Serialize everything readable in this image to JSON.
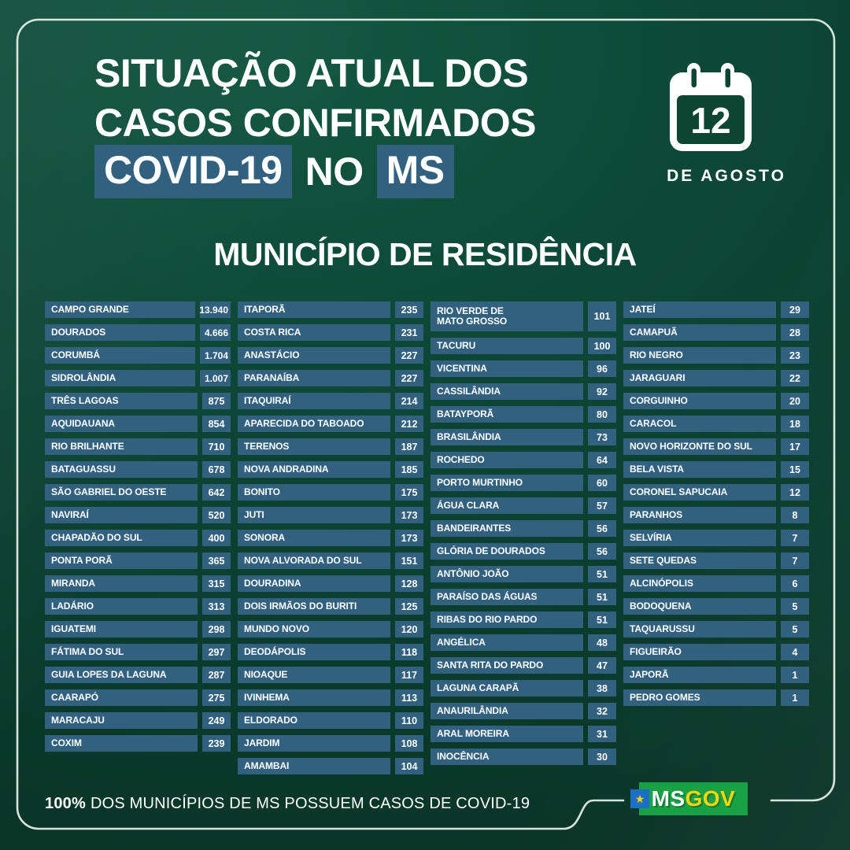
{
  "colors": {
    "accent": "#31617F",
    "bg": "#0C4434",
    "frame": "#E9F2EC",
    "logo_green": "#18A145",
    "logo_yellow": "#FFD500",
    "logo_blue": "#1D6FC2"
  },
  "header": {
    "title_line1": "SITUAÇÃO ATUAL DOS",
    "title_line2": "CASOS CONFIRMADOS",
    "covid_label": "COVID-19",
    "connector": "NO",
    "ms_label": "MS",
    "date_day": "12",
    "date_month": "DE AGOSTO"
  },
  "section_title": "MUNICÍPIO DE RESIDÊNCIA",
  "display": {
    "columns": [
      {
        "rows": [
          {
            "name": "CAMPO GRANDE",
            "value": "13.940"
          },
          {
            "name": "DOURADOS",
            "value": "4.666"
          },
          {
            "name": "CORUMBÁ",
            "value": "1.704"
          },
          {
            "name": "SIDROLÂNDIA",
            "value": "1.007"
          },
          {
            "name": "TRÊS LAGOAS",
            "value": "875"
          },
          {
            "name": "AQUIDAUANA",
            "value": "854"
          },
          {
            "name": "RIO BRILHANTE",
            "value": "710"
          },
          {
            "name": "BATAGUASSU",
            "value": "678"
          },
          {
            "name": "SÃO GABRIEL DO OESTE",
            "value": "642"
          },
          {
            "name": "NAVIRAÍ",
            "value": "520"
          },
          {
            "name": "CHAPADÃO DO SUL",
            "value": "400"
          },
          {
            "name": "PONTA PORÃ",
            "value": "365"
          },
          {
            "name": "MIRANDA",
            "value": "315"
          },
          {
            "name": "LADÁRIO",
            "value": "313"
          },
          {
            "name": "IGUATEMI",
            "value": "298"
          },
          {
            "name": "FÁTIMA DO SUL",
            "value": "297"
          },
          {
            "name": "GUIA LOPES DA LAGUNA",
            "value": "287"
          },
          {
            "name": "CAARAPÓ",
            "value": "275"
          },
          {
            "name": "MARACAJU",
            "value": "249"
          },
          {
            "name": "COXIM",
            "value": "239"
          }
        ]
      },
      {
        "rows": [
          {
            "name": "ITAPORÃ",
            "value": "235"
          },
          {
            "name": "COSTA RICA",
            "value": "231"
          },
          {
            "name": "ANASTÁCIO",
            "value": "227"
          },
          {
            "name": "PARANAÍBA",
            "value": "227"
          },
          {
            "name": "ITAQUIRAÍ",
            "value": "214"
          },
          {
            "name": "APARECIDA DO TABOADO",
            "value": "212"
          },
          {
            "name": "TERENOS",
            "value": "187"
          },
          {
            "name": "NOVA ANDRADINA",
            "value": "185"
          },
          {
            "name": "BONITO",
            "value": "175"
          },
          {
            "name": "JUTI",
            "value": "173"
          },
          {
            "name": "SONORA",
            "value": "173"
          },
          {
            "name": "NOVA ALVORADA DO SUL",
            "value": "151"
          },
          {
            "name": "DOURADINA",
            "value": "128"
          },
          {
            "name": "DOIS IRMÃOS DO BURITI",
            "value": "125"
          },
          {
            "name": "MUNDO NOVO",
            "value": "120"
          },
          {
            "name": "DEODÁPOLIS",
            "value": "118"
          },
          {
            "name": "NIOAQUE",
            "value": "117"
          },
          {
            "name": "IVINHEMA",
            "value": "113"
          },
          {
            "name": "ELDORADO",
            "value": "110"
          },
          {
            "name": "JARDIM",
            "value": "108"
          },
          {
            "name": "AMAMBAI",
            "value": "104"
          }
        ]
      },
      {
        "rows": [
          {
            "name": "RIO VERDE DE\nMATO GROSSO",
            "value": "101",
            "tall": true
          },
          {
            "name": "TACURU",
            "value": "100"
          },
          {
            "name": "VICENTINA",
            "value": "96"
          },
          {
            "name": "CASSILÂNDIA",
            "value": "92"
          },
          {
            "name": "BATAYPORÃ",
            "value": "80"
          },
          {
            "name": "BRASILÂNDIA",
            "value": "73"
          },
          {
            "name": "ROCHEDO",
            "value": "64"
          },
          {
            "name": "PORTO MURTINHO",
            "value": "60"
          },
          {
            "name": "ÁGUA CLARA",
            "value": "57"
          },
          {
            "name": "BANDEIRANTES",
            "value": "56"
          },
          {
            "name": "GLÓRIA DE DOURADOS",
            "value": "56"
          },
          {
            "name": "ANTÔNIO JOÃO",
            "value": "51"
          },
          {
            "name": "PARAÍSO DAS ÁGUAS",
            "value": "51"
          },
          {
            "name": "RIBAS DO RIO PARDO",
            "value": "51"
          },
          {
            "name": "ANGÉLICA",
            "value": "48"
          },
          {
            "name": "SANTA RITA DO PARDO",
            "value": "47"
          },
          {
            "name": "LAGUNA CARAPÃ",
            "value": "38"
          },
          {
            "name": "ANAURILÂNDIA",
            "value": "32"
          },
          {
            "name": "ARAL MOREIRA",
            "value": "31"
          },
          {
            "name": "INOCÊNCIA",
            "value": "30"
          }
        ]
      },
      {
        "rows": [
          {
            "name": "JATEÍ",
            "value": "29"
          },
          {
            "name": "CAMAPUÃ",
            "value": "28"
          },
          {
            "name": "RIO NEGRO",
            "value": "23"
          },
          {
            "name": "JARAGUARI",
            "value": "22"
          },
          {
            "name": "CORGUINHO",
            "value": "20"
          },
          {
            "name": "CARACOL",
            "value": "18"
          },
          {
            "name": "NOVO HORIZONTE DO SUL",
            "value": "17"
          },
          {
            "name": "BELA VISTA",
            "value": "15"
          },
          {
            "name": "CORONEL SAPUCAIA",
            "value": "12"
          },
          {
            "name": "PARANHOS",
            "value": "8"
          },
          {
            "name": "SELVÍRIA",
            "value": "7"
          },
          {
            "name": "SETE QUEDAS",
            "value": "7"
          },
          {
            "name": "ALCINÓPOLIS",
            "value": "6"
          },
          {
            "name": "BODOQUENA",
            "value": "5"
          },
          {
            "name": "TAQUARUSSU",
            "value": "5"
          },
          {
            "name": "FIGUEIRÃO",
            "value": "4"
          },
          {
            "name": "JAPORÃ",
            "value": "1"
          },
          {
            "name": "PEDRO GOMES",
            "value": "1"
          }
        ]
      }
    ]
  },
  "footer": {
    "percent": "100%",
    "text": "DOS MUNICÍPIOS DE MS POSSUEM CASOS DE COVID-19"
  },
  "logo": {
    "ms": "MS",
    "gov": "GOV",
    "star": "★"
  },
  "chart_data": {
    "type": "table",
    "title": "SITUAÇÃO ATUAL DOS CASOS CONFIRMADOS COVID-19 NO MS",
    "date": "12 DE AGOSTO",
    "subtitle": "MUNICÍPIO DE RESIDÊNCIA",
    "columns": [
      "MUNICÍPIO",
      "CASOS CONFIRMADOS"
    ],
    "rows": [
      [
        "CAMPO GRANDE",
        13940
      ],
      [
        "DOURADOS",
        4666
      ],
      [
        "CORUMBÁ",
        1704
      ],
      [
        "SIDROLÂNDIA",
        1007
      ],
      [
        "TRÊS LAGOAS",
        875
      ],
      [
        "AQUIDAUANA",
        854
      ],
      [
        "RIO BRILHANTE",
        710
      ],
      [
        "BATAGUASSU",
        678
      ],
      [
        "SÃO GABRIEL DO OESTE",
        642
      ],
      [
        "NAVIRAÍ",
        520
      ],
      [
        "CHAPADÃO DO SUL",
        400
      ],
      [
        "PONTA PORÃ",
        365
      ],
      [
        "MIRANDA",
        315
      ],
      [
        "LADÁRIO",
        313
      ],
      [
        "IGUATEMI",
        298
      ],
      [
        "FÁTIMA DO SUL",
        297
      ],
      [
        "GUIA LOPES DA LAGUNA",
        287
      ],
      [
        "CAARAPÓ",
        275
      ],
      [
        "MARACAJU",
        249
      ],
      [
        "COXIM",
        239
      ],
      [
        "ITAPORÃ",
        235
      ],
      [
        "COSTA RICA",
        231
      ],
      [
        "ANASTÁCIO",
        227
      ],
      [
        "PARANAÍBA",
        227
      ],
      [
        "ITAQUIRAÍ",
        214
      ],
      [
        "APARECIDA DO TABOADO",
        212
      ],
      [
        "TERENOS",
        187
      ],
      [
        "NOVA ANDRADINA",
        185
      ],
      [
        "BONITO",
        175
      ],
      [
        "JUTI",
        173
      ],
      [
        "SONORA",
        173
      ],
      [
        "NOVA ALVORADA DO SUL",
        151
      ],
      [
        "DOURADINA",
        128
      ],
      [
        "DOIS IRMÃOS DO BURITI",
        125
      ],
      [
        "MUNDO NOVO",
        120
      ],
      [
        "DEODÁPOLIS",
        118
      ],
      [
        "NIOAQUE",
        117
      ],
      [
        "IVINHEMA",
        113
      ],
      [
        "ELDORADO",
        110
      ],
      [
        "JARDIM",
        108
      ],
      [
        "AMAMBAI",
        104
      ],
      [
        "RIO VERDE DE MATO GROSSO",
        101
      ],
      [
        "TACURU",
        100
      ],
      [
        "VICENTINA",
        96
      ],
      [
        "CASSILÂNDIA",
        92
      ],
      [
        "BATAYPORÃ",
        80
      ],
      [
        "BRASILÂNDIA",
        73
      ],
      [
        "ROCHEDO",
        64
      ],
      [
        "PORTO MURTINHO",
        60
      ],
      [
        "ÁGUA CLARA",
        57
      ],
      [
        "BANDEIRANTES",
        56
      ],
      [
        "GLÓRIA DE DOURADOS",
        56
      ],
      [
        "ANTÔNIO JOÃO",
        51
      ],
      [
        "PARAÍSO DAS ÁGUAS",
        51
      ],
      [
        "RIBAS DO RIO PARDO",
        51
      ],
      [
        "ANGÉLICA",
        48
      ],
      [
        "SANTA RITA DO PARDO",
        47
      ],
      [
        "LAGUNA CARAPÃ",
        38
      ],
      [
        "ANAURILÂNDIA",
        32
      ],
      [
        "ARAL MOREIRA",
        31
      ],
      [
        "INOCÊNCIA",
        30
      ],
      [
        "JATEÍ",
        29
      ],
      [
        "CAMAPUÃ",
        28
      ],
      [
        "RIO NEGRO",
        23
      ],
      [
        "JARAGUARI",
        22
      ],
      [
        "CORGUINHO",
        20
      ],
      [
        "CARACOL",
        18
      ],
      [
        "NOVO HORIZONTE DO SUL",
        17
      ],
      [
        "BELA VISTA",
        15
      ],
      [
        "CORONEL SAPUCAIA",
        12
      ],
      [
        "PARANHOS",
        8
      ],
      [
        "SELVÍRIA",
        7
      ],
      [
        "SETE QUEDAS",
        7
      ],
      [
        "ALCINÓPOLIS",
        6
      ],
      [
        "BODOQUENA",
        5
      ],
      [
        "TAQUARUSSU",
        5
      ],
      [
        "FIGUEIRÃO",
        4
      ],
      [
        "JAPORÃ",
        1
      ],
      [
        "PEDRO GOMES",
        1
      ]
    ],
    "footnote": "100% DOS MUNICÍPIOS DE MS POSSUEM CASOS DE COVID-19",
    "legend_position": "none",
    "grid": false
  }
}
